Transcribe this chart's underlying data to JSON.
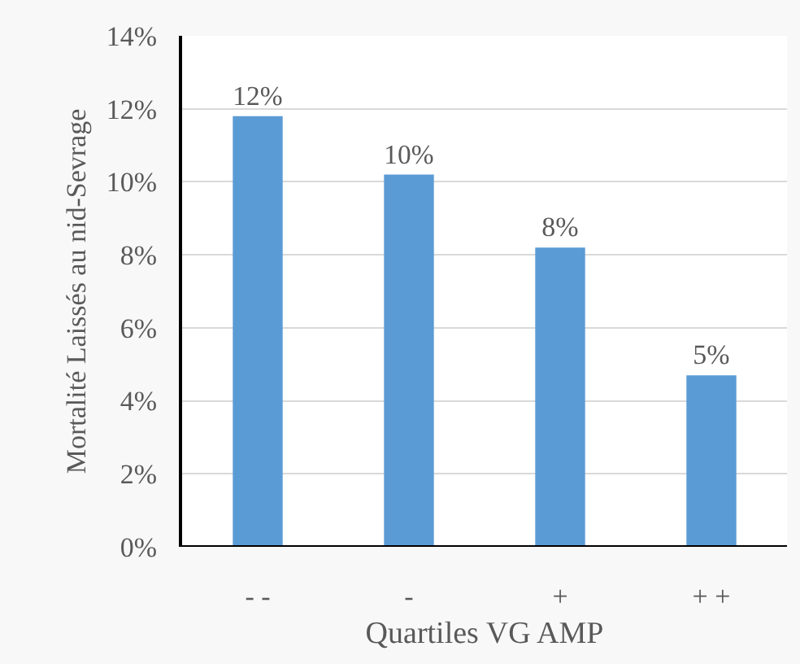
{
  "chart_data": {
    "type": "bar",
    "xlabel": "Quartiles VG AMP",
    "ylabel": "Mortalité Laissés au nid-Sevrage",
    "categories": [
      "- -",
      "-",
      "+",
      "+ +"
    ],
    "values": [
      11.8,
      10.2,
      8.2,
      4.7
    ],
    "value_labels": [
      "12%",
      "10%",
      "8%",
      "5%"
    ],
    "color": "#5b9bd5",
    "ylim": [
      0,
      14
    ],
    "yticks": [
      {
        "value": 0,
        "label": "0%"
      },
      {
        "value": 2,
        "label": "2%"
      },
      {
        "value": 4,
        "label": "4%"
      },
      {
        "value": 6,
        "label": "6%"
      },
      {
        "value": 8,
        "label": "8%"
      },
      {
        "value": 10,
        "label": "10%"
      },
      {
        "value": 12,
        "label": "12%"
      },
      {
        "value": 14,
        "label": "14%"
      }
    ],
    "grid": "y"
  }
}
